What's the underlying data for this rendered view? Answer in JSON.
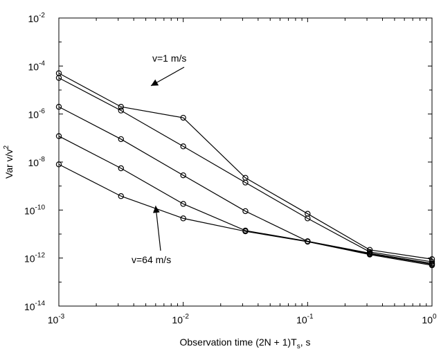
{
  "chart_data": {
    "type": "line",
    "x_scale": "log",
    "y_scale": "log",
    "xlim": [
      0.001,
      1
    ],
    "ylim": [
      1e-14,
      0.01
    ],
    "grid": false,
    "marker": "circle",
    "line_color": "#000000",
    "x_ticks": [
      {
        "base": "10",
        "exp": "-3",
        "value": 0.001
      },
      {
        "base": "10",
        "exp": "-2",
        "value": 0.01
      },
      {
        "base": "10",
        "exp": "-1",
        "value": 0.1
      },
      {
        "base": "10",
        "exp": "0",
        "value": 1
      }
    ],
    "y_ticks": [
      {
        "base": "10",
        "exp": "-14",
        "value": 1e-14
      },
      {
        "base": "10",
        "exp": "-12",
        "value": 1e-12
      },
      {
        "base": "10",
        "exp": "-10",
        "value": 1e-10
      },
      {
        "base": "10",
        "exp": "-8",
        "value": 1e-08
      },
      {
        "base": "10",
        "exp": "-6",
        "value": 1e-06
      },
      {
        "base": "10",
        "exp": "-4",
        "value": 0.0001
      },
      {
        "base": "10",
        "exp": "-2",
        "value": 0.01
      }
    ],
    "xlabel": {
      "main": "Observation time (2N + 1)T",
      "sub": "s",
      "tail": ", s"
    },
    "ylabel": {
      "main": "Var v/v",
      "sup": "2"
    },
    "x": [
      0.001,
      0.00316,
      0.01,
      0.0316,
      0.1,
      0.316,
      1
    ],
    "series": [
      {
        "values": [
          5e-05,
          2e-06,
          7e-07,
          2.2e-09,
          7e-11,
          2.2e-12,
          9e-13
        ]
      },
      {
        "values": [
          3.2e-05,
          1.4e-06,
          4.5e-08,
          1.4e-09,
          4.5e-11,
          1.8e-12,
          7e-13
        ]
      },
      {
        "values": [
          2e-06,
          9e-08,
          2.8e-09,
          9e-11,
          5e-12,
          1.6e-12,
          6e-13
        ]
      },
      {
        "values": [
          1.2e-07,
          5.5e-09,
          1.8e-10,
          1.4e-11,
          5e-12,
          1.5e-12,
          5.5e-13
        ]
      },
      {
        "values": [
          8e-09,
          3.8e-10,
          4.5e-11,
          1.3e-11,
          4.8e-12,
          1.4e-12,
          5e-13
        ]
      }
    ],
    "annotations": [
      {
        "text": "v=1 m/s",
        "arrow_to": {
          "x": 0.0055,
          "y": 1.5e-05
        }
      },
      {
        "text": "v=64 m/s",
        "arrow_to": {
          "x": 0.006,
          "y": 1.5e-10
        }
      }
    ]
  }
}
